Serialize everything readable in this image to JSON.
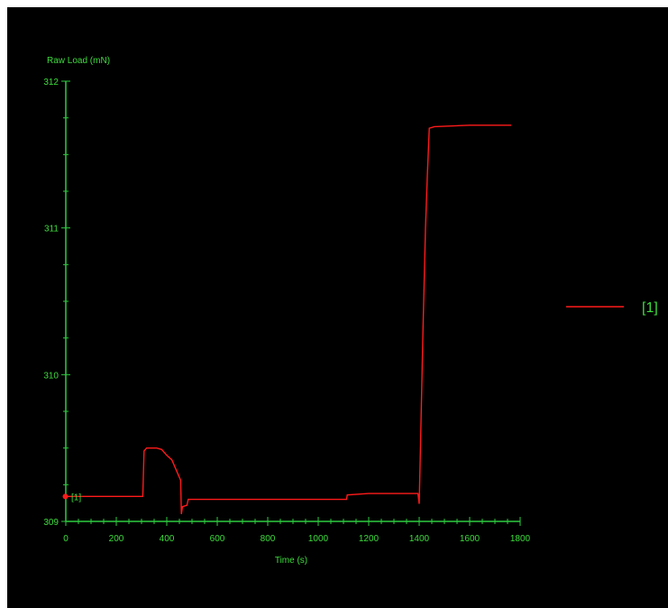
{
  "chart_data": {
    "type": "line",
    "ylabel": "Raw Load (mN)",
    "xlabel": "Time (s)",
    "xlim": [
      0,
      1800
    ],
    "ylim": [
      309,
      312
    ],
    "x_ticks": [
      0,
      200,
      400,
      600,
      800,
      1000,
      1200,
      1400,
      1600,
      1800
    ],
    "y_ticks": [
      309,
      310,
      311,
      312
    ],
    "grid": false,
    "legend_position": "right",
    "start_marker_label": "[1]",
    "series": [
      {
        "name": "[1]",
        "color": "#ff1a1a",
        "points": [
          [
            0,
            309.17
          ],
          [
            300,
            309.17
          ],
          [
            305,
            309.17
          ],
          [
            310,
            309.48
          ],
          [
            320,
            309.5
          ],
          [
            360,
            309.5
          ],
          [
            380,
            309.49
          ],
          [
            400,
            309.45
          ],
          [
            420,
            309.42
          ],
          [
            430,
            309.38
          ],
          [
            440,
            309.34
          ],
          [
            450,
            309.3
          ],
          [
            455,
            309.28
          ],
          [
            458,
            309.05
          ],
          [
            462,
            309.1
          ],
          [
            480,
            309.11
          ],
          [
            485,
            309.15
          ],
          [
            700,
            309.15
          ],
          [
            900,
            309.15
          ],
          [
            1100,
            309.15
          ],
          [
            1112,
            309.15
          ],
          [
            1115,
            309.18
          ],
          [
            1200,
            309.19
          ],
          [
            1300,
            309.19
          ],
          [
            1395,
            309.19
          ],
          [
            1400,
            309.12
          ],
          [
            1405,
            309.5
          ],
          [
            1415,
            310.3
          ],
          [
            1425,
            311.0
          ],
          [
            1432,
            311.35
          ],
          [
            1440,
            311.68
          ],
          [
            1460,
            311.69
          ],
          [
            1600,
            311.7
          ],
          [
            1765,
            311.7
          ]
        ]
      }
    ]
  }
}
